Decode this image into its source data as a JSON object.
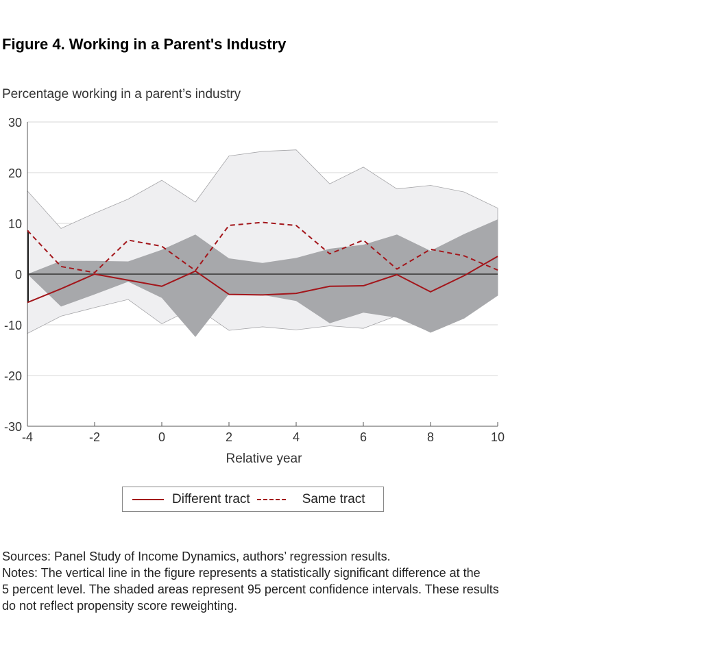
{
  "title": "Figure 4. Working in a Parent's Industry",
  "y_caption": "Percentage working in a parent’s industry",
  "x_caption": "Relative year",
  "legend": {
    "different": "Different tract",
    "same": "Same tract"
  },
  "notes": {
    "sources": "Sources: Panel Study of Income Dynamics, authors’ regression results.",
    "line1": "Notes: The vertical line in the figure represents a statistically significant difference at the",
    "line2": "5 percent level. The shaded areas represent 95 percent confidence intervals. These results",
    "line3": "do not reflect propensity score reweighting."
  },
  "colors": {
    "line": "#a3161b",
    "ci_same": "#efeff1",
    "ci_diff": "#a7a8ab",
    "grid": "#d7d7d7"
  },
  "chart_data": {
    "type": "line",
    "x": [
      -4,
      -3,
      -2,
      -1,
      0,
      1,
      2,
      3,
      4,
      5,
      6,
      7,
      8,
      9,
      10
    ],
    "xlim": [
      -4,
      10
    ],
    "ylim": [
      -30,
      30
    ],
    "xticks": [
      -4,
      -2,
      0,
      2,
      4,
      6,
      8,
      10
    ],
    "yticks": [
      30,
      20,
      10,
      0,
      -10,
      -20,
      -30
    ],
    "series": [
      {
        "name": "Different tract",
        "style": "solid",
        "values": [
          -5.6,
          -2.9,
          0.0,
          -1.2,
          -2.4,
          0.6,
          -4.0,
          -4.1,
          -3.8,
          -2.4,
          -2.3,
          -0.1,
          -3.5,
          -0.3,
          3.5
        ]
      },
      {
        "name": "Same tract",
        "style": "dashed",
        "values": [
          8.6,
          1.5,
          0.3,
          6.7,
          5.5,
          0.7,
          9.6,
          10.2,
          9.6,
          4.0,
          6.7,
          1.0,
          4.9,
          3.6,
          0.8
        ]
      }
    ],
    "bands": [
      {
        "series": "Same tract",
        "upper": [
          16.4,
          9.0,
          12.0,
          14.8,
          18.5,
          14.2,
          23.3,
          24.2,
          24.5,
          17.8,
          21.1,
          16.8,
          17.5,
          16.2,
          13.0
        ],
        "lower": [
          -11.7,
          -8.3,
          -6.6,
          -5.0,
          -9.8,
          -6.5,
          -11.1,
          -10.4,
          -11.0,
          -10.2,
          -10.7,
          -8.2,
          -11.5,
          -8.7,
          -4.2
        ]
      },
      {
        "series": "Different tract",
        "upper": [
          0.0,
          2.6,
          2.6,
          2.5,
          4.8,
          7.8,
          3.1,
          2.2,
          3.2,
          5.0,
          5.8,
          7.8,
          4.6,
          7.9,
          10.8
        ],
        "lower": [
          0.0,
          -6.4,
          -4.0,
          -1.5,
          -4.7,
          -12.4,
          -3.9,
          -4.1,
          -5.3,
          -9.7,
          -7.6,
          -8.6,
          -11.5,
          -8.7,
          -4.2
        ]
      }
    ],
    "significance_marker_x": [
      -4
    ]
  }
}
